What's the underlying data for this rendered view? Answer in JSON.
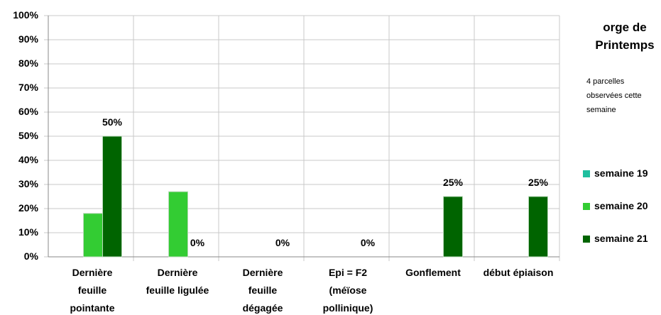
{
  "chart_data": {
    "type": "bar",
    "title": "orge de\nPrintemps",
    "subtitle": "4 parcelles\nobservées cette\nsemaine",
    "categories": [
      "Dernière\nfeuille\npointante",
      "Dernière\nfeuille ligulée",
      "Dernière\nfeuille\ndégagée",
      "Epi = F2\n(méïose\npollinique)",
      "Gonflement",
      "début épiaison"
    ],
    "series": [
      {
        "name": "semaine 19",
        "color": "#1fbf9f",
        "values": [
          null,
          null,
          null,
          null,
          null,
          null
        ]
      },
      {
        "name": "semaine 20",
        "color": "#33cc33",
        "values": [
          18,
          27,
          0,
          0,
          0,
          0
        ]
      },
      {
        "name": "semaine 21",
        "color": "#006400",
        "values": [
          50,
          0,
          0,
          0,
          25,
          25
        ],
        "value_labels": [
          "50%",
          "0%",
          "0%",
          "0%",
          "25%",
          "25%"
        ]
      }
    ],
    "ylim": [
      0,
      100
    ],
    "yticks": [
      {
        "value": 0,
        "label": "0%"
      },
      {
        "value": 10,
        "label": "10%"
      },
      {
        "value": 20,
        "label": "20%"
      },
      {
        "value": 30,
        "label": "30%"
      },
      {
        "value": 40,
        "label": "40%"
      },
      {
        "value": 50,
        "label": "50%"
      },
      {
        "value": 60,
        "label": "60%"
      },
      {
        "value": 70,
        "label": "70%"
      },
      {
        "value": 80,
        "label": "80%"
      },
      {
        "value": 90,
        "label": "90%"
      },
      {
        "value": 100,
        "label": "100%"
      }
    ],
    "grid": true
  }
}
